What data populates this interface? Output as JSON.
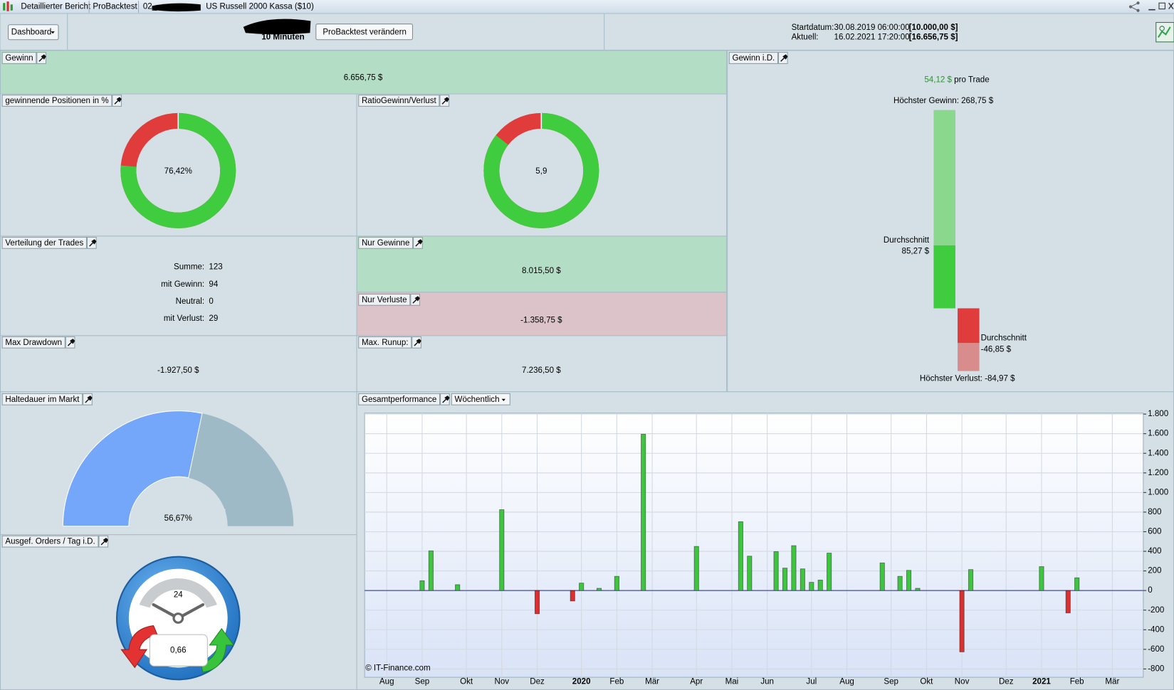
{
  "title_bar": {
    "tabs": [
      "Detaillierter Bericht",
      "ProBacktest",
      "02_",
      "US Russell 2000 Kassa ($10)"
    ]
  },
  "toolbar": {
    "view": "Dashboard",
    "timeframe": "10 Minuten",
    "button": "ProBacktest verändern",
    "start_label": "Startdatum:",
    "start_date": "30.08.2019 06:00:00",
    "start_capital": "[10.000,00 $]",
    "current_label": "Aktuell:",
    "current_date": "16.02.2021 17:20:00",
    "current_capital": "[16.656,75 $]"
  },
  "style": {
    "gain": "#3fcd3f",
    "loss": "#e03c3c",
    "gain_light": "#8ad88e",
    "loss_light": "#d98c8c",
    "holding": "#74a7f9",
    "holding_rest": "#9fbac7"
  },
  "panels": {
    "gewinn": {
      "title": "Gewinn",
      "value": "6.656,75 $"
    },
    "winning_positions": {
      "title": "gewinnende Positionen in %",
      "value": 76.42,
      "value_label": "76,42%"
    },
    "ratio": {
      "title": "RatioGewinn/Verlust",
      "value": 5.9,
      "value_label": "5,9"
    },
    "distribution": {
      "title": "Verteilung der Trades",
      "rows": [
        {
          "label": "Summe:",
          "value": 123,
          "color": "#000000"
        },
        {
          "label": "mit Gewinn:",
          "value": 94,
          "color": "#22a022"
        },
        {
          "label": "Neutral:",
          "value": 0,
          "color": "#000000"
        },
        {
          "label": "mit Verlust:",
          "value": 29,
          "color": "#a81818"
        }
      ]
    },
    "gains_only": {
      "title": "Nur Gewinne",
      "value": "8.015,50 $"
    },
    "losses_only": {
      "title": "Nur Verluste",
      "value": "-1.358,75 $"
    },
    "max_drawdown": {
      "title": "Max Drawdown",
      "value": "-1.927,50 $"
    },
    "max_runup": {
      "title": "Max. Runup:",
      "value": "7.236,50 $"
    },
    "holding_time": {
      "title": "Haltedauer im Markt",
      "value": 56.67,
      "value_label": "56,67%"
    },
    "orders_per_day": {
      "title": "Ausgef. Orders / Tag i.D.",
      "clock": "24",
      "value": "0,66"
    },
    "gewinn_id": {
      "title": "Gewinn i.D.",
      "per_trade": "54,12 $",
      "per_trade_suffix": "pro Trade",
      "max_gain": {
        "label": "Höchster Gewinn:",
        "value": 268.75,
        "value_label": "268,75 $"
      },
      "avg_gain": {
        "label": "Durchschnitt",
        "value": 85.27,
        "value_label": "85,27 $"
      },
      "avg_loss": {
        "label": "Durchschnitt",
        "value": -46.85,
        "value_label": "-46,85 $"
      },
      "max_loss": {
        "label": "Höchster Verlust:",
        "value": -84.97,
        "value_label": "-84,97 $"
      }
    }
  },
  "chart_data": {
    "type": "bar",
    "title": "Gesamtperformance",
    "period": "Wöchentlich",
    "credit": "© IT-Finance.com",
    "categories": [
      null,
      null,
      "Aug",
      null,
      null,
      null,
      "Sep",
      null,
      null,
      null,
      null,
      "Okt",
      null,
      null,
      null,
      "Nov",
      null,
      null,
      null,
      "Dez",
      null,
      null,
      null,
      null,
      "2020",
      null,
      null,
      null,
      "Feb",
      null,
      null,
      null,
      "Mär",
      null,
      null,
      null,
      null,
      "Apr",
      null,
      null,
      null,
      "Mai",
      null,
      null,
      null,
      "Jun",
      null,
      null,
      null,
      null,
      "Jul",
      null,
      null,
      null,
      "Aug",
      null,
      null,
      null,
      null,
      "Sep",
      null,
      null,
      null,
      "Okt",
      null,
      null,
      null,
      "Nov",
      null,
      null,
      null,
      null,
      "Dez",
      null,
      null,
      null,
      "2021",
      null,
      null,
      null,
      "Feb",
      null,
      null,
      null,
      "Mär",
      null,
      null,
      null
    ],
    "values": [
      null,
      null,
      null,
      null,
      null,
      null,
      100,
      405,
      null,
      null,
      60,
      null,
      null,
      null,
      null,
      825,
      null,
      null,
      null,
      -237,
      null,
      null,
      null,
      -107,
      76,
      null,
      23,
      null,
      145,
      null,
      null,
      1595,
      null,
      null,
      null,
      null,
      null,
      450,
      null,
      null,
      null,
      null,
      702,
      351,
      null,
      null,
      397,
      229,
      458,
      221,
      84,
      107,
      382,
      null,
      null,
      null,
      null,
      null,
      282,
      null,
      145,
      206,
      23,
      null,
      null,
      null,
      null,
      -626,
      214,
      null,
      null,
      null,
      null,
      null,
      null,
      null,
      244,
      null,
      null,
      -229,
      130,
      null,
      null,
      null,
      null,
      null,
      null,
      null
    ],
    "positive_color": "#3ec43e",
    "negative_color": "#d93030",
    "ylim": [
      -885,
      1810
    ],
    "yticks": [
      -800,
      -600,
      -400,
      -200,
      0,
      200,
      400,
      600,
      800,
      {
        "value": 1000,
        "label": "1.000"
      },
      {
        "value": 1200,
        "label": "1.200"
      },
      {
        "value": 1400,
        "label": "1.400"
      },
      {
        "value": 1600,
        "label": "1.600"
      },
      {
        "value": 1800,
        "label": "1.800"
      }
    ],
    "grid": true
  }
}
